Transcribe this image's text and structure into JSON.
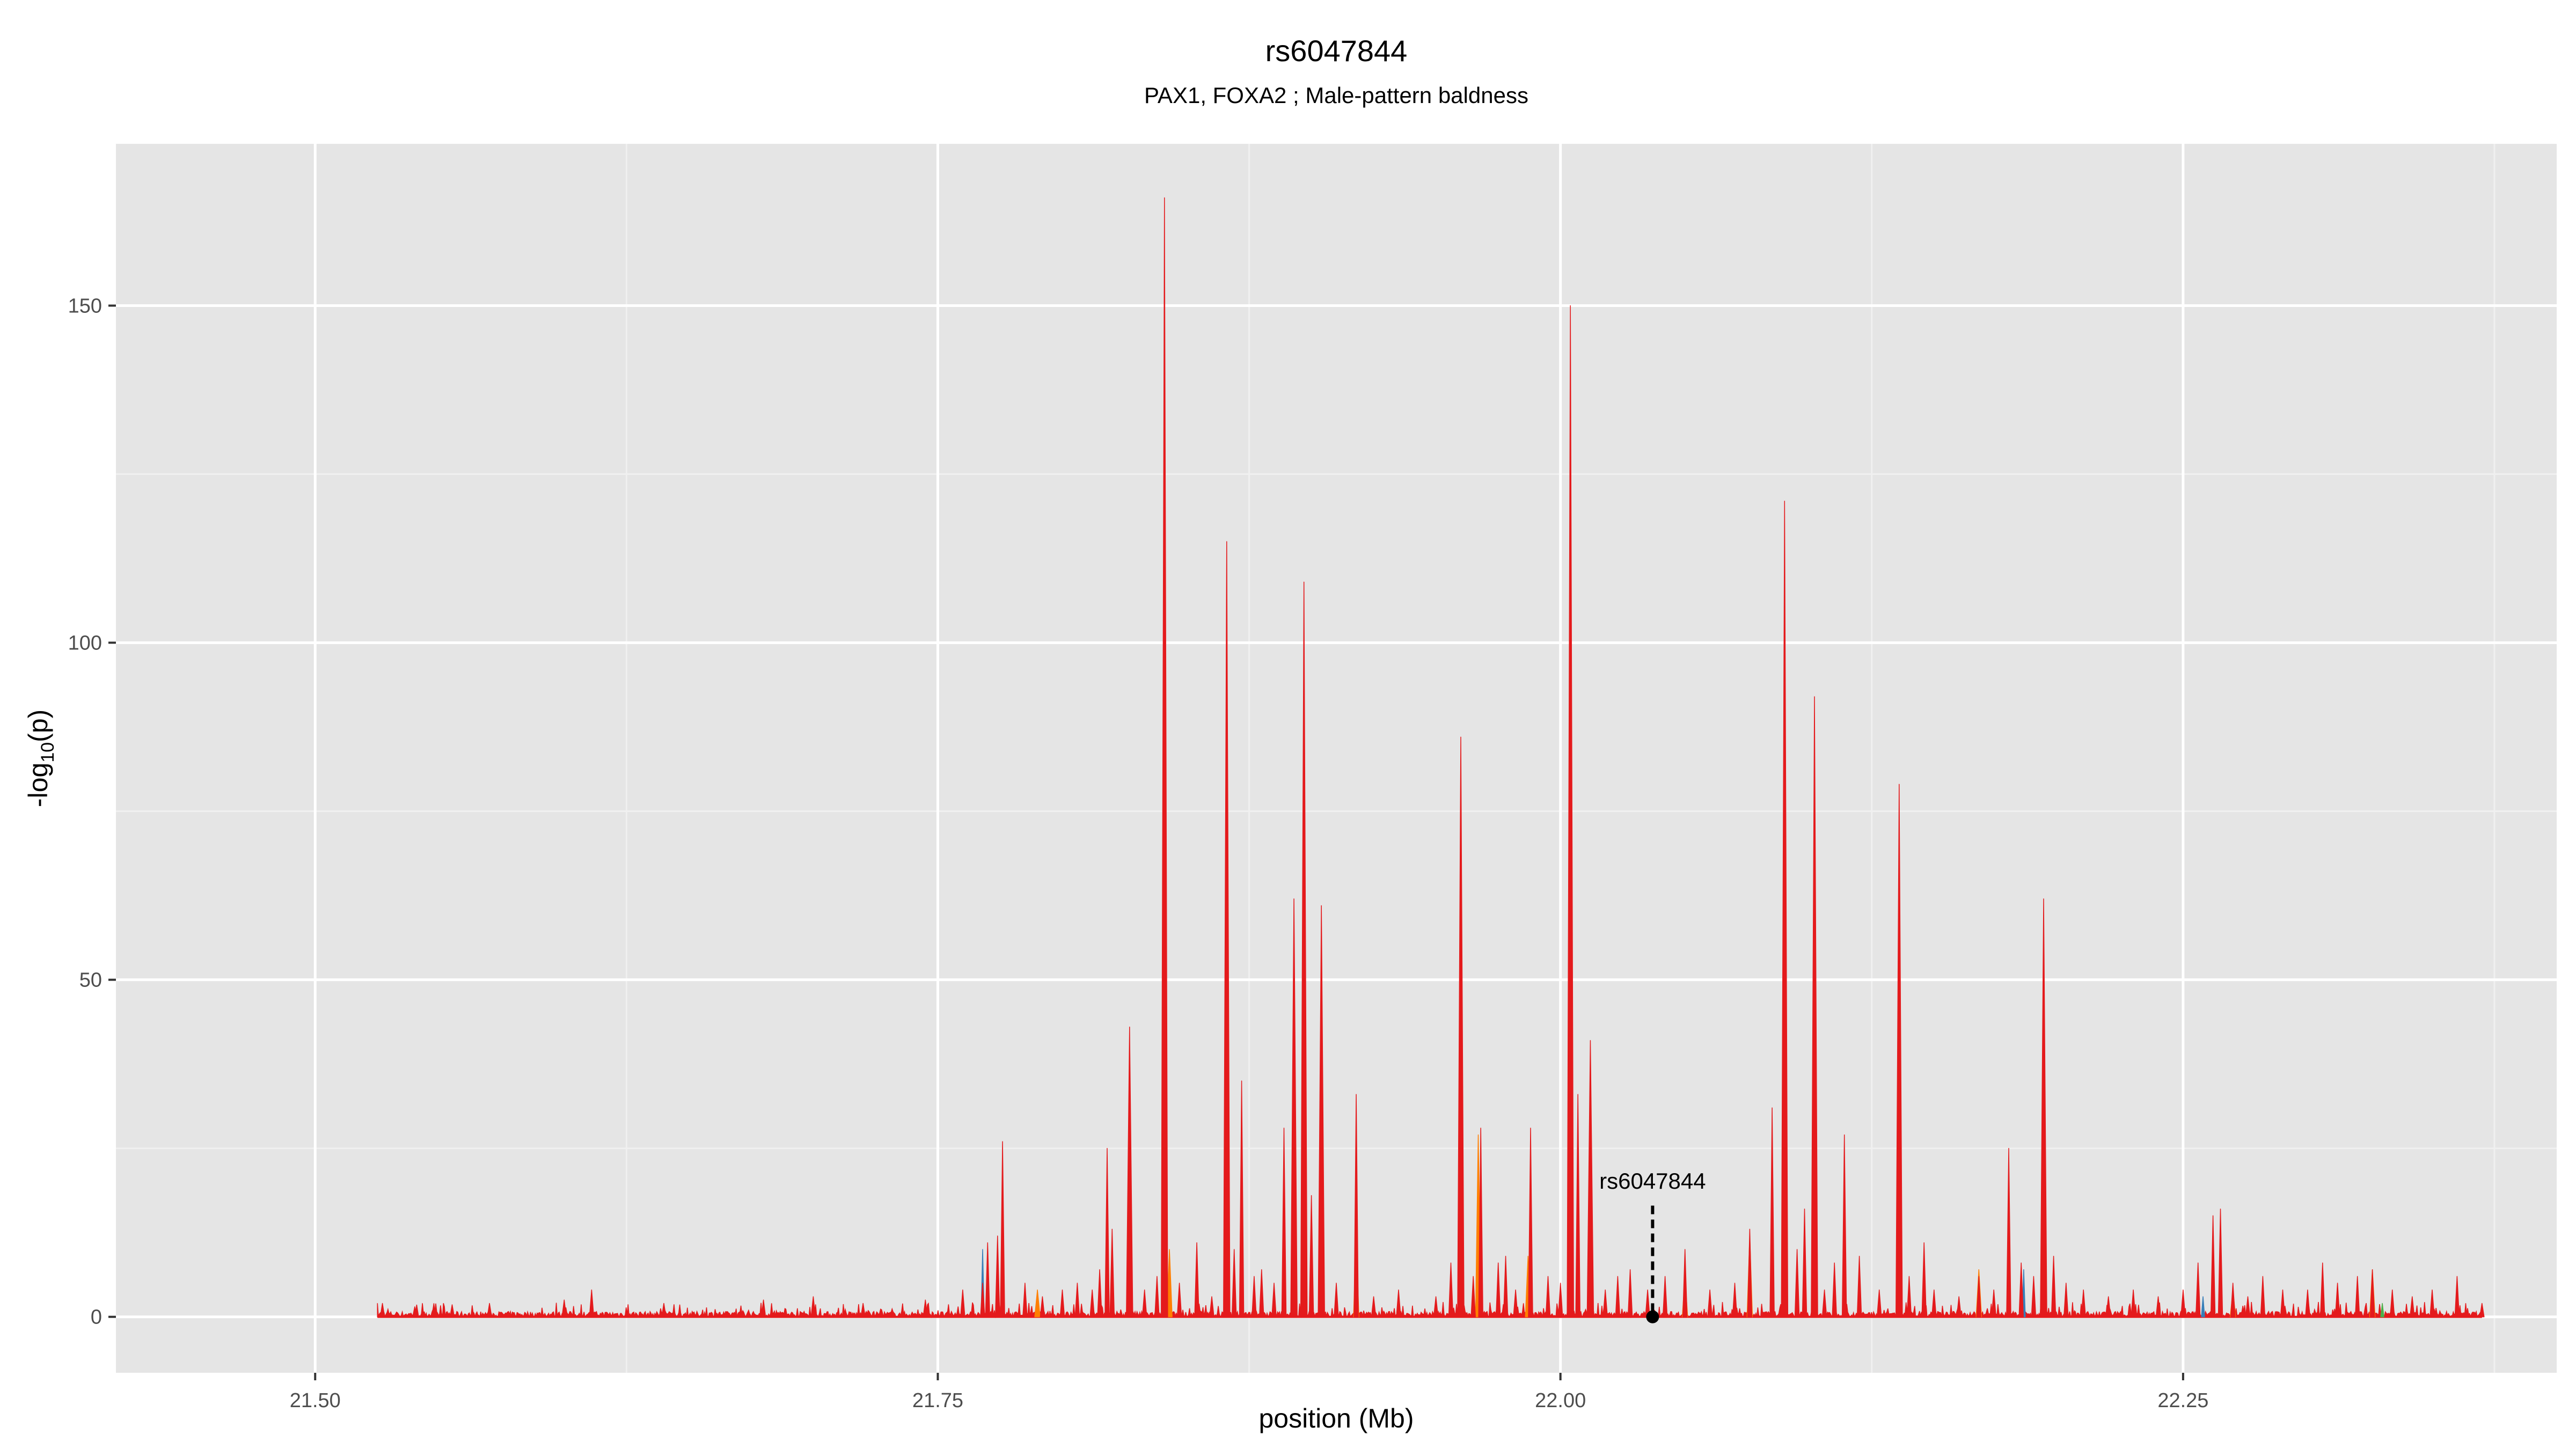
{
  "chart_data": {
    "type": "area",
    "title": "rs6047844",
    "subtitle": "PAX1, FOXA2 ; Male-pattern baldness",
    "xlabel": "position (Mb)",
    "ylabel_main": "-log",
    "ylabel_sub": "10",
    "ylabel_tail": "(p)",
    "xlim": [
      21.42,
      22.4
    ],
    "ylim": [
      -8.3,
      174
    ],
    "x_ticks": [
      {
        "value": 21.5,
        "label": "21.50"
      },
      {
        "value": 21.75,
        "label": "21.75"
      },
      {
        "value": 22.0,
        "label": "22.00"
      },
      {
        "value": 22.25,
        "label": "22.25"
      }
    ],
    "y_ticks": [
      {
        "value": 0,
        "label": "0"
      },
      {
        "value": 50,
        "label": "50"
      },
      {
        "value": 100,
        "label": "100"
      },
      {
        "value": 150,
        "label": "150"
      }
    ],
    "grid": true,
    "colors": {
      "panel": "#e5e5e5",
      "grid_major": "#ffffff",
      "grid_minor": "#f0f0f0",
      "tick_text": "#4d4d4d",
      "signal_main": "#e41a1c",
      "signal_secondary": "#ff7f00",
      "signal_minor_blue": "#377eb8",
      "signal_minor_green": "#4daf4a",
      "annotation": "#000000"
    },
    "position_range": [
      21.525,
      22.37
    ],
    "peaks": [
      {
        "x": 21.527,
        "y": 2
      },
      {
        "x": 21.54,
        "y": 1.5
      },
      {
        "x": 21.555,
        "y": 1.8
      },
      {
        "x": 21.57,
        "y": 2
      },
      {
        "x": 21.6,
        "y": 2.5
      },
      {
        "x": 21.611,
        "y": 4
      },
      {
        "x": 21.64,
        "y": 2
      },
      {
        "x": 21.68,
        "y": 2.5
      },
      {
        "x": 21.7,
        "y": 3
      },
      {
        "x": 21.72,
        "y": 2
      },
      {
        "x": 21.745,
        "y": 2.5
      },
      {
        "x": 21.76,
        "y": 4
      },
      {
        "x": 21.768,
        "y": 5
      },
      {
        "x": 21.77,
        "y": 11
      },
      {
        "x": 21.774,
        "y": 12
      },
      {
        "x": 21.776,
        "y": 26
      },
      {
        "x": 21.785,
        "y": 5
      },
      {
        "x": 21.792,
        "y": 3
      },
      {
        "x": 21.8,
        "y": 4
      },
      {
        "x": 21.806,
        "y": 5
      },
      {
        "x": 21.812,
        "y": 4
      },
      {
        "x": 21.815,
        "y": 7
      },
      {
        "x": 21.818,
        "y": 25
      },
      {
        "x": 21.82,
        "y": 13
      },
      {
        "x": 21.827,
        "y": 43
      },
      {
        "x": 21.833,
        "y": 4
      },
      {
        "x": 21.838,
        "y": 6
      },
      {
        "x": 21.841,
        "y": 166
      },
      {
        "x": 21.847,
        "y": 5
      },
      {
        "x": 21.854,
        "y": 11
      },
      {
        "x": 21.86,
        "y": 3
      },
      {
        "x": 21.866,
        "y": 115
      },
      {
        "x": 21.869,
        "y": 10
      },
      {
        "x": 21.872,
        "y": 35
      },
      {
        "x": 21.877,
        "y": 6
      },
      {
        "x": 21.88,
        "y": 7
      },
      {
        "x": 21.885,
        "y": 5
      },
      {
        "x": 21.889,
        "y": 28
      },
      {
        "x": 21.893,
        "y": 62
      },
      {
        "x": 21.897,
        "y": 109
      },
      {
        "x": 21.9,
        "y": 18
      },
      {
        "x": 21.904,
        "y": 61
      },
      {
        "x": 21.91,
        "y": 5
      },
      {
        "x": 21.918,
        "y": 33
      },
      {
        "x": 21.925,
        "y": 3
      },
      {
        "x": 21.935,
        "y": 4
      },
      {
        "x": 21.95,
        "y": 3
      },
      {
        "x": 21.956,
        "y": 8
      },
      {
        "x": 21.96,
        "y": 86
      },
      {
        "x": 21.965,
        "y": 6
      },
      {
        "x": 21.968,
        "y": 28
      },
      {
        "x": 21.975,
        "y": 8
      },
      {
        "x": 21.978,
        "y": 9
      },
      {
        "x": 21.982,
        "y": 4
      },
      {
        "x": 21.988,
        "y": 28
      },
      {
        "x": 21.995,
        "y": 6
      },
      {
        "x": 22.0,
        "y": 5
      },
      {
        "x": 22.004,
        "y": 150
      },
      {
        "x": 22.007,
        "y": 33
      },
      {
        "x": 22.012,
        "y": 41
      },
      {
        "x": 22.018,
        "y": 4
      },
      {
        "x": 22.023,
        "y": 6
      },
      {
        "x": 22.028,
        "y": 7
      },
      {
        "x": 22.035,
        "y": 4
      },
      {
        "x": 22.042,
        "y": 6
      },
      {
        "x": 22.05,
        "y": 10
      },
      {
        "x": 22.06,
        "y": 4
      },
      {
        "x": 22.07,
        "y": 5
      },
      {
        "x": 22.076,
        "y": 13
      },
      {
        "x": 22.085,
        "y": 31
      },
      {
        "x": 22.09,
        "y": 121
      },
      {
        "x": 22.095,
        "y": 10
      },
      {
        "x": 22.098,
        "y": 16
      },
      {
        "x": 22.102,
        "y": 92
      },
      {
        "x": 22.106,
        "y": 4
      },
      {
        "x": 22.11,
        "y": 8
      },
      {
        "x": 22.114,
        "y": 27
      },
      {
        "x": 22.12,
        "y": 9
      },
      {
        "x": 22.128,
        "y": 4
      },
      {
        "x": 22.136,
        "y": 79
      },
      {
        "x": 22.14,
        "y": 6
      },
      {
        "x": 22.146,
        "y": 11
      },
      {
        "x": 22.15,
        "y": 4
      },
      {
        "x": 22.16,
        "y": 3
      },
      {
        "x": 22.168,
        "y": 6
      },
      {
        "x": 22.174,
        "y": 4
      },
      {
        "x": 22.18,
        "y": 25
      },
      {
        "x": 22.185,
        "y": 8
      },
      {
        "x": 22.19,
        "y": 6
      },
      {
        "x": 22.194,
        "y": 62
      },
      {
        "x": 22.198,
        "y": 9
      },
      {
        "x": 22.203,
        "y": 5
      },
      {
        "x": 22.21,
        "y": 4
      },
      {
        "x": 22.22,
        "y": 3
      },
      {
        "x": 22.23,
        "y": 4
      },
      {
        "x": 22.24,
        "y": 3
      },
      {
        "x": 22.25,
        "y": 4
      },
      {
        "x": 22.256,
        "y": 8
      },
      {
        "x": 22.262,
        "y": 15
      },
      {
        "x": 22.265,
        "y": 16
      },
      {
        "x": 22.27,
        "y": 5
      },
      {
        "x": 22.276,
        "y": 3
      },
      {
        "x": 22.282,
        "y": 6
      },
      {
        "x": 22.29,
        "y": 4
      },
      {
        "x": 22.3,
        "y": 4
      },
      {
        "x": 22.306,
        "y": 8
      },
      {
        "x": 22.312,
        "y": 5
      },
      {
        "x": 22.32,
        "y": 6
      },
      {
        "x": 22.326,
        "y": 7
      },
      {
        "x": 22.334,
        "y": 4
      },
      {
        "x": 22.342,
        "y": 3
      },
      {
        "x": 22.35,
        "y": 4
      },
      {
        "x": 22.36,
        "y": 6
      },
      {
        "x": 22.37,
        "y": 2
      }
    ],
    "secondary_peaks": [
      {
        "x": 21.79,
        "y": 4
      },
      {
        "x": 21.843,
        "y": 10
      },
      {
        "x": 21.893,
        "y": 14
      },
      {
        "x": 21.918,
        "y": 12
      },
      {
        "x": 21.967,
        "y": 27
      },
      {
        "x": 21.987,
        "y": 9
      },
      {
        "x": 22.05,
        "y": 6
      },
      {
        "x": 22.076,
        "y": 12
      },
      {
        "x": 22.168,
        "y": 7
      },
      {
        "x": 22.27,
        "y": 4
      },
      {
        "x": 22.326,
        "y": 7
      }
    ],
    "minor_blue_peaks": [
      {
        "x": 21.768,
        "y": 10
      },
      {
        "x": 22.186,
        "y": 7
      },
      {
        "x": 22.258,
        "y": 3
      }
    ],
    "minor_green_peaks": [
      {
        "x": 22.33,
        "y": 2
      }
    ],
    "annotation": {
      "label": "rs6047844",
      "x": 22.037,
      "y": 0,
      "line_top": 16.5,
      "label_y": 19
    }
  }
}
